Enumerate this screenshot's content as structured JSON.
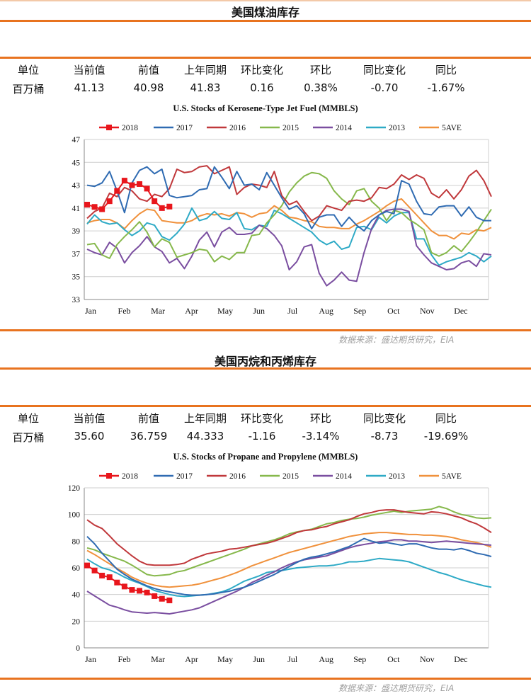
{
  "sections": [
    {
      "title": "美国煤油库存",
      "headers": [
        "单位",
        "当前值",
        "前值",
        "上年同期",
        "环比变化",
        "环比",
        "同比变化",
        "同比"
      ],
      "values": [
        "百万桶",
        "41.13",
        "40.98",
        "41.83",
        "0.16",
        "0.38%",
        "-0.70",
        "-1.67%"
      ],
      "source": "数据来源：盛达期货研究，EIA"
    },
    {
      "title": "美国丙烷和丙烯库存",
      "headers": [
        "单位",
        "当前值",
        "前值",
        "上年同期",
        "环比变化",
        "环比",
        "同比变化",
        "同比"
      ],
      "values": [
        "百万桶",
        "35.60",
        "36.759",
        "44.333",
        "-1.16",
        "-3.14%",
        "-8.73",
        "-19.69%"
      ],
      "source": "数据来源：盛达期货研究，EIA"
    }
  ],
  "chart_data": [
    {
      "type": "line",
      "title": "U.S.  Stocks of Kerosene-Type Jet Fuel (MMBLS)",
      "month_labels": [
        "Jan",
        "Feb",
        "Mar",
        "Apr",
        "May",
        "Jun",
        "Jul",
        "Aug",
        "Sep",
        "Oct",
        "Nov",
        "Dec"
      ],
      "ylim": [
        33,
        47
      ],
      "yticks": [
        33,
        35,
        37,
        39,
        41,
        43,
        45,
        47
      ],
      "grid": true,
      "legend": "top",
      "series": [
        {
          "name": "2018",
          "color": "#e8161c",
          "marker": "square",
          "values": [
            41.3,
            41.1,
            40.9,
            41.6,
            42.5,
            43.4,
            43.0,
            43.1,
            42.7,
            41.6,
            41.0,
            41.13
          ]
        },
        {
          "name": "2017",
          "color": "#2f6bb2",
          "values": [
            43.0,
            42.9,
            43.2,
            44.2,
            42.5,
            40.6,
            43.2,
            44.3,
            44.6,
            44.0,
            44.4,
            42.1,
            41.9,
            42.0,
            42.1,
            42.6,
            42.7,
            44.6,
            43.7,
            42.7,
            44.2,
            43.0,
            43.1,
            42.6,
            44.1,
            43.0,
            41.9,
            40.9,
            41.2,
            40.5,
            39.2,
            40.2,
            40.4,
            40.4,
            39.4,
            40.2,
            39.5,
            39.0,
            39.9,
            40.4,
            40.7,
            40.5,
            43.4,
            43.1,
            41.6,
            40.5,
            40.4,
            41.1,
            41.2,
            41.2,
            40.3,
            41.1,
            40.2,
            39.9,
            39.9
          ]
        },
        {
          "name": "2016",
          "color": "#c0383b",
          "values": [
            40.1,
            40.7,
            41.0,
            42.3,
            42.0,
            42.8,
            42.5,
            41.8,
            41.6,
            42.2,
            42.0,
            42.7,
            44.4,
            44.1,
            44.2,
            44.6,
            44.7,
            44.0,
            44.3,
            44.6,
            42.2,
            42.8,
            43.1,
            43.0,
            42.8,
            44.2,
            42.1,
            41.3,
            41.6,
            40.7,
            39.9,
            40.3,
            41.2,
            41.0,
            40.8,
            41.6,
            41.7,
            41.6,
            41.9,
            42.8,
            42.7,
            43.1,
            43.9,
            43.5,
            43.9,
            43.6,
            42.3,
            41.9,
            42.6,
            41.8,
            42.6,
            43.8,
            44.3,
            43.4,
            42.0
          ]
        },
        {
          "name": "2015",
          "color": "#86b84b",
          "values": [
            37.8,
            37.9,
            36.9,
            36.6,
            37.8,
            38.5,
            39.1,
            39.8,
            38.9,
            37.6,
            38.3,
            38.0,
            36.7,
            36.9,
            37.1,
            37.4,
            37.3,
            36.3,
            36.8,
            36.5,
            37.1,
            37.1,
            38.6,
            38.7,
            39.7,
            40.4,
            41.2,
            42.4,
            43.2,
            43.8,
            44.1,
            44.0,
            43.6,
            42.5,
            41.8,
            41.3,
            42.5,
            42.7,
            41.6,
            41.0,
            39.9,
            40.8,
            40.6,
            40.0,
            39.6,
            39.1,
            37.1,
            36.8,
            37.1,
            37.7,
            37.2,
            38.0,
            38.9,
            39.9,
            40.9
          ]
        },
        {
          "name": "2014",
          "color": "#7a4ea0",
          "values": [
            37.4,
            37.1,
            36.9,
            38.0,
            37.5,
            36.2,
            37.1,
            37.7,
            38.5,
            37.6,
            37.2,
            36.2,
            36.6,
            35.7,
            36.8,
            38.2,
            38.9,
            37.6,
            38.9,
            39.3,
            38.7,
            38.7,
            38.8,
            39.5,
            39.2,
            38.6,
            37.7,
            35.6,
            36.3,
            37.6,
            37.8,
            35.3,
            34.2,
            34.7,
            35.4,
            34.7,
            34.6,
            37.1,
            39.2,
            40.4,
            40.8,
            40.9,
            40.9,
            40.7,
            37.7,
            36.9,
            36.2,
            35.9,
            35.6,
            35.7,
            36.2,
            36.4,
            35.9,
            37.0,
            36.9
          ]
        },
        {
          "name": "2013",
          "color": "#2eaac6",
          "values": [
            39.6,
            40.4,
            39.8,
            39.6,
            39.7,
            39.1,
            38.6,
            39.0,
            39.7,
            39.5,
            38.5,
            38.2,
            38.8,
            39.6,
            41.0,
            39.9,
            40.1,
            40.7,
            40.1,
            40.0,
            40.6,
            39.2,
            39.1,
            39.5,
            39.4,
            40.8,
            40.5,
            40.1,
            39.7,
            39.3,
            38.9,
            38.2,
            37.8,
            38.1,
            37.4,
            37.6,
            39.3,
            39.4,
            39.1,
            40.2,
            39.7,
            40.3,
            40.6,
            40.6,
            38.3,
            38.3,
            36.9,
            36.0,
            36.3,
            36.5,
            36.7,
            37.1,
            36.8,
            36.3,
            36.8
          ]
        },
        {
          "name": "5AVE",
          "color": "#f0913c",
          "values": [
            39.7,
            39.9,
            40.0,
            40.0,
            39.7,
            39.2,
            39.9,
            40.5,
            40.9,
            40.8,
            39.9,
            39.8,
            39.7,
            39.7,
            39.9,
            40.3,
            40.5,
            40.4,
            40.5,
            40.3,
            40.6,
            40.5,
            40.2,
            40.5,
            40.6,
            41.2,
            40.8,
            40.2,
            40.1,
            39.9,
            39.8,
            39.4,
            39.3,
            39.3,
            39.2,
            39.2,
            39.6,
            39.9,
            40.3,
            40.7,
            41.2,
            41.6,
            41.8,
            41.1,
            40.4,
            39.7,
            39.0,
            38.6,
            38.6,
            38.3,
            38.8,
            38.7,
            39.1,
            39.0,
            39.3
          ]
        }
      ]
    },
    {
      "type": "line",
      "title": "U.S.  Stocks of Propane and Propylene (MMBLS)",
      "month_labels": [
        "Jan",
        "Feb",
        "Mar",
        "Apr",
        "May",
        "Jun",
        "Jul",
        "Aug",
        "Sep",
        "Oct",
        "Nov",
        "Dec"
      ],
      "ylim": [
        0,
        120
      ],
      "yticks": [
        0,
        20,
        40,
        60,
        80,
        100,
        120
      ],
      "grid": true,
      "legend": "top",
      "series": [
        {
          "name": "2018",
          "color": "#e8161c",
          "marker": "square",
          "values": [
            61.8,
            58.0,
            54.2,
            53.0,
            49.0,
            46.0,
            43.5,
            42.8,
            41.5,
            38.8,
            36.8,
            35.6
          ]
        },
        {
          "name": "2017",
          "color": "#2f6bb2",
          "values": [
            83.5,
            78.0,
            71.0,
            65.0,
            59.0,
            55.0,
            51.5,
            49.0,
            46.5,
            44.5,
            43.0,
            42.0,
            41.0,
            40.0,
            39.5,
            39.5,
            40.0,
            40.5,
            41.5,
            42.5,
            44.0,
            45.5,
            47.5,
            50.0,
            52.5,
            55.0,
            58.0,
            61.0,
            64.0,
            66.5,
            68.0,
            69.0,
            70.5,
            72.0,
            74.0,
            76.0,
            79.0,
            82.0,
            80.0,
            78.5,
            79.0,
            78.0,
            77.0,
            78.0,
            78.0,
            76.5,
            75.0,
            74.0,
            74.0,
            73.5,
            74.5,
            73.0,
            71.0,
            70.0,
            68.5
          ]
        },
        {
          "name": "2016",
          "color": "#c0383b",
          "values": [
            96.0,
            92.0,
            89.5,
            84.0,
            78.0,
            73.5,
            69.0,
            65.0,
            62.5,
            62.0,
            62.0,
            62.0,
            62.5,
            63.5,
            66.5,
            68.5,
            70.5,
            71.5,
            72.5,
            74.0,
            74.5,
            75.5,
            76.5,
            77.5,
            78.5,
            80.0,
            82.0,
            84.0,
            86.5,
            88.0,
            88.5,
            90.0,
            91.0,
            93.0,
            94.5,
            96.0,
            98.5,
            100.5,
            101.5,
            103.0,
            103.5,
            103.5,
            102.5,
            101.5,
            101.0,
            100.5,
            102.0,
            101.5,
            100.5,
            99.0,
            97.5,
            95.0,
            93.0,
            90.0,
            86.5
          ]
        },
        {
          "name": "2015",
          "color": "#86b84b",
          "values": [
            75.0,
            73.5,
            71.0,
            69.0,
            67.0,
            65.0,
            62.0,
            58.5,
            55.0,
            54.0,
            54.5,
            55.0,
            57.0,
            58.0,
            60.0,
            62.0,
            64.0,
            66.0,
            68.0,
            70.0,
            72.0,
            74.0,
            76.5,
            78.0,
            79.5,
            81.0,
            83.0,
            85.5,
            87.0,
            88.0,
            89.0,
            91.0,
            93.0,
            94.0,
            95.5,
            96.5,
            97.0,
            98.0,
            99.5,
            100.5,
            101.5,
            102.5,
            101.5,
            102.5,
            103.0,
            103.5,
            104.0,
            106.0,
            104.5,
            102.0,
            100.0,
            99.0,
            97.5,
            97.0,
            97.5
          ]
        },
        {
          "name": "2014",
          "color": "#7a4ea0",
          "values": [
            42.5,
            39.0,
            35.5,
            32.0,
            30.5,
            28.5,
            27.0,
            26.5,
            26.0,
            26.5,
            26.0,
            25.5,
            26.5,
            27.5,
            28.5,
            30.0,
            32.5,
            35.0,
            37.5,
            40.0,
            42.5,
            45.5,
            49.0,
            51.5,
            54.5,
            57.0,
            60.0,
            62.5,
            64.5,
            66.0,
            67.0,
            68.0,
            69.0,
            71.0,
            73.0,
            75.0,
            76.5,
            77.5,
            78.5,
            79.5,
            80.0,
            81.0,
            81.0,
            80.0,
            80.0,
            79.5,
            79.0,
            79.5,
            80.0,
            79.5,
            79.0,
            78.5,
            78.0,
            77.5,
            77.0
          ]
        },
        {
          "name": "2013",
          "color": "#2eaac6",
          "values": [
            66.5,
            63.0,
            60.0,
            58.5,
            56.0,
            53.0,
            50.5,
            48.5,
            46.0,
            43.0,
            41.5,
            40.0,
            39.0,
            38.5,
            39.0,
            39.5,
            40.0,
            41.0,
            42.0,
            44.0,
            47.0,
            50.0,
            52.0,
            54.0,
            56.5,
            57.5,
            58.0,
            59.0,
            60.0,
            60.5,
            61.0,
            61.5,
            61.5,
            62.0,
            63.0,
            64.5,
            64.5,
            65.0,
            66.0,
            67.0,
            66.5,
            66.0,
            65.5,
            64.5,
            62.5,
            60.5,
            58.5,
            56.5,
            55.0,
            53.0,
            51.0,
            49.5,
            48.0,
            46.5,
            45.5
          ]
        },
        {
          "name": "5AVE",
          "color": "#f0913c",
          "values": [
            73.0,
            70.0,
            66.5,
            63.0,
            59.5,
            56.5,
            53.0,
            50.5,
            48.5,
            47.0,
            46.0,
            45.5,
            46.0,
            46.5,
            47.0,
            48.0,
            49.5,
            51.0,
            52.5,
            54.5,
            56.5,
            59.0,
            61.5,
            63.5,
            65.5,
            67.5,
            69.5,
            71.5,
            73.0,
            74.5,
            76.0,
            77.5,
            79.0,
            80.5,
            82.0,
            83.5,
            84.5,
            85.5,
            86.0,
            86.5,
            86.5,
            86.0,
            85.5,
            85.0,
            85.0,
            84.5,
            84.5,
            84.0,
            83.5,
            82.5,
            81.0,
            80.0,
            79.0,
            77.5,
            75.5
          ]
        }
      ]
    }
  ]
}
